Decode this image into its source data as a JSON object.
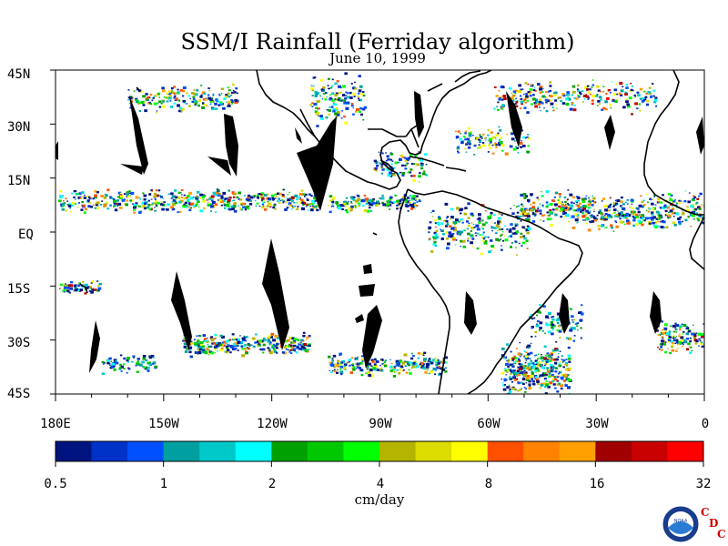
{
  "map": {
    "title": "SSM/I Rainfall (Ferriday algorithm)",
    "subtitle": "June 10, 1999",
    "lat_labels": [
      "45N",
      "30N",
      "15N",
      "EQ",
      "15S",
      "30S",
      "45S"
    ],
    "lon_labels": [
      "180E",
      "150W",
      "120W",
      "90W",
      "60W",
      "30W",
      "0"
    ],
    "lat_range": [
      -45,
      45
    ],
    "lon_range": [
      -180,
      0
    ],
    "missing_data_color": "#000000",
    "coastline_color": "#000000"
  },
  "colorbar": {
    "unit": "cm/day",
    "tick_labels": [
      "0.5",
      "1",
      "2",
      "4",
      "8",
      "16",
      "32"
    ],
    "colors": [
      "#001480",
      "#0032c8",
      "#0050ff",
      "#00a0a0",
      "#00c8c8",
      "#00ffff",
      "#00a000",
      "#00c800",
      "#00ff00",
      "#b4b400",
      "#dcdc00",
      "#ffff00",
      "#ff5000",
      "#ff8200",
      "#ffa000",
      "#a00000",
      "#c80000",
      "#ff0000"
    ]
  },
  "logo": {
    "noaa_text": "NOAA",
    "cdc_letters": [
      "C",
      "D",
      "C"
    ]
  }
}
